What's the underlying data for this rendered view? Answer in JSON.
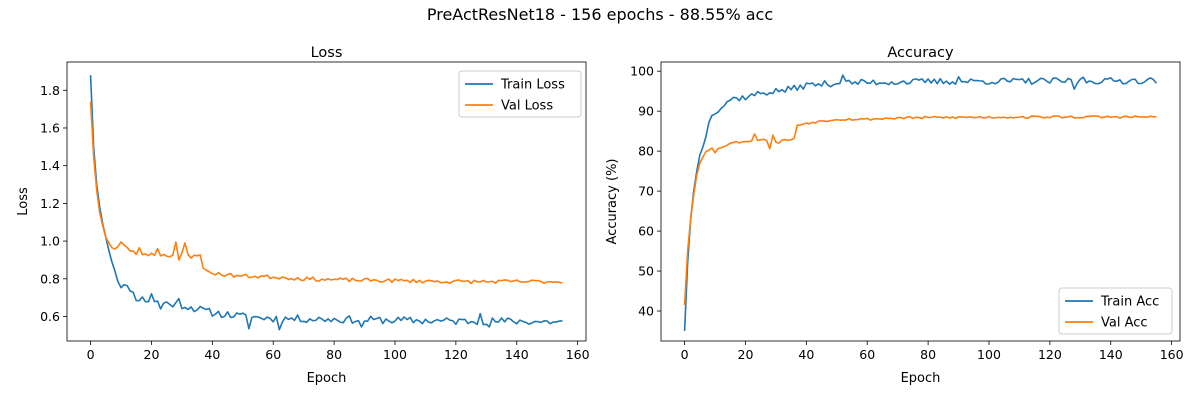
{
  "figure": {
    "suptitle": "PreActResNet18 - 156 epochs - 88.55% acc"
  },
  "colors": {
    "train": "#1f77b4",
    "val": "#ff7f0e"
  },
  "chart_data": [
    {
      "type": "line",
      "title": "Loss",
      "xlabel": "Epoch",
      "ylabel": "Loss",
      "xlim": [
        -7.75,
        162.75
      ],
      "ylim": [
        0.47,
        1.95
      ],
      "xticks": [
        0,
        20,
        40,
        60,
        80,
        100,
        120,
        140,
        160
      ],
      "yticks": [
        0.6,
        0.8,
        1.0,
        1.2,
        1.4,
        1.6,
        1.8
      ],
      "ytick_decimals": 1,
      "grid": false,
      "legend": "top-right",
      "series": [
        {
          "name": "Train Loss",
          "color": "#1f77b4",
          "keypoints": [
            [
              0,
              1.88
            ],
            [
              1,
              1.5
            ],
            [
              2,
              1.3
            ],
            [
              3,
              1.18
            ],
            [
              4,
              1.09
            ],
            [
              5,
              1.02
            ],
            [
              6,
              0.95
            ],
            [
              7,
              0.9
            ],
            [
              8,
              0.85
            ],
            [
              9,
              0.79
            ],
            [
              10,
              0.77
            ],
            [
              12,
              0.75
            ],
            [
              14,
              0.72
            ],
            [
              15,
              0.7
            ],
            [
              20,
              0.68
            ],
            [
              25,
              0.67
            ],
            [
              30,
              0.66
            ],
            [
              35,
              0.64
            ],
            [
              40,
              0.62
            ],
            [
              50,
              0.6
            ],
            [
              60,
              0.59
            ],
            [
              80,
              0.585
            ],
            [
              100,
              0.58
            ],
            [
              120,
              0.575
            ],
            [
              140,
              0.575
            ],
            [
              155,
              0.57
            ]
          ],
          "noise": 0.02,
          "seed": 11,
          "spikes": [
            [
              13,
              0.735
            ],
            [
              20,
              0.72
            ],
            [
              23,
              0.64
            ],
            [
              29,
              0.695
            ],
            [
              52,
              0.535
            ],
            [
              62,
              0.53
            ],
            [
              89,
              0.545
            ],
            [
              128,
              0.615
            ],
            [
              131,
              0.545
            ]
          ]
        },
        {
          "name": "Val Loss",
          "color": "#ff7f0e",
          "keypoints": [
            [
              0,
              1.74
            ],
            [
              1,
              1.45
            ],
            [
              2,
              1.27
            ],
            [
              3,
              1.15
            ],
            [
              4,
              1.08
            ],
            [
              5,
              1.02
            ],
            [
              6,
              0.99
            ],
            [
              7,
              0.97
            ],
            [
              8,
              0.96
            ],
            [
              9,
              0.97
            ],
            [
              10,
              0.99
            ],
            [
              12,
              0.96
            ],
            [
              15,
              0.935
            ],
            [
              20,
              0.93
            ],
            [
              25,
              0.925
            ],
            [
              30,
              0.93
            ],
            [
              36,
              0.93
            ],
            [
              37,
              0.85
            ],
            [
              40,
              0.83
            ],
            [
              45,
              0.82
            ],
            [
              50,
              0.815
            ],
            [
              60,
              0.81
            ],
            [
              70,
              0.8
            ],
            [
              80,
              0.795
            ],
            [
              100,
              0.79
            ],
            [
              120,
              0.785
            ],
            [
              155,
              0.785
            ]
          ],
          "noise": 0.01,
          "seed": 23,
          "spikes": [
            [
              10,
              0.995
            ],
            [
              16,
              0.965
            ],
            [
              22,
              0.96
            ],
            [
              28,
              0.995
            ],
            [
              29,
              0.9
            ],
            [
              31,
              0.99
            ],
            [
              33,
              0.91
            ]
          ]
        }
      ]
    },
    {
      "type": "line",
      "title": "Accuracy",
      "xlabel": "Epoch",
      "ylabel": "Accuracy (%)",
      "xlim": [
        -7.75,
        162.75
      ],
      "ylim": [
        32.5,
        102.3
      ],
      "xticks": [
        0,
        20,
        40,
        60,
        80,
        100,
        120,
        140,
        160
      ],
      "yticks": [
        40,
        50,
        60,
        70,
        80,
        90,
        100
      ],
      "ytick_decimals": 0,
      "grid": false,
      "legend": "bottom-right",
      "series": [
        {
          "name": "Train Acc",
          "color": "#1f77b4",
          "keypoints": [
            [
              0,
              35
            ],
            [
              1,
              52
            ],
            [
              2,
              63
            ],
            [
              3,
              70
            ],
            [
              4,
              75
            ],
            [
              5,
              79
            ],
            [
              6,
              81
            ],
            [
              7,
              84
            ],
            [
              8,
              87
            ],
            [
              9,
              89.5
            ],
            [
              10,
              90
            ],
            [
              12,
              91
            ],
            [
              15,
              93
            ],
            [
              20,
              93.5
            ],
            [
              25,
              94.5
            ],
            [
              30,
              95
            ],
            [
              35,
              95.5
            ],
            [
              40,
              96.5
            ],
            [
              50,
              97
            ],
            [
              60,
              97.2
            ],
            [
              80,
              97.4
            ],
            [
              100,
              97.5
            ],
            [
              120,
              97.5
            ],
            [
              140,
              97.6
            ],
            [
              155,
              97.7
            ]
          ],
          "noise": 0.8,
          "seed": 37,
          "spikes": [
            [
              52,
              99
            ],
            [
              90,
              98.6
            ],
            [
              128,
              95.5
            ],
            [
              131,
              98.5
            ]
          ]
        },
        {
          "name": "Val Acc",
          "color": "#ff7f0e",
          "keypoints": [
            [
              0,
              41.5
            ],
            [
              1,
              55
            ],
            [
              2,
              63
            ],
            [
              3,
              69
            ],
            [
              4,
              74
            ],
            [
              5,
              77
            ],
            [
              6,
              78.5
            ],
            [
              7,
              80
            ],
            [
              8,
              80.5
            ],
            [
              9,
              81
            ],
            [
              10,
              80
            ],
            [
              12,
              81
            ],
            [
              15,
              82
            ],
            [
              20,
              82.5
            ],
            [
              25,
              83
            ],
            [
              30,
              82.5
            ],
            [
              36,
              83
            ],
            [
              37,
              86.5
            ],
            [
              40,
              87
            ],
            [
              45,
              87.5
            ],
            [
              50,
              88
            ],
            [
              60,
              88
            ],
            [
              70,
              88.3
            ],
            [
              80,
              88.4
            ],
            [
              100,
              88.5
            ],
            [
              120,
              88.55
            ],
            [
              155,
              88.55
            ]
          ],
          "noise": 0.3,
          "seed": 53,
          "spikes": [
            [
              10,
              79.6
            ],
            [
              23,
              84.3
            ],
            [
              28,
              80.6
            ],
            [
              29,
              84
            ],
            [
              31,
              82
            ]
          ]
        }
      ]
    }
  ]
}
